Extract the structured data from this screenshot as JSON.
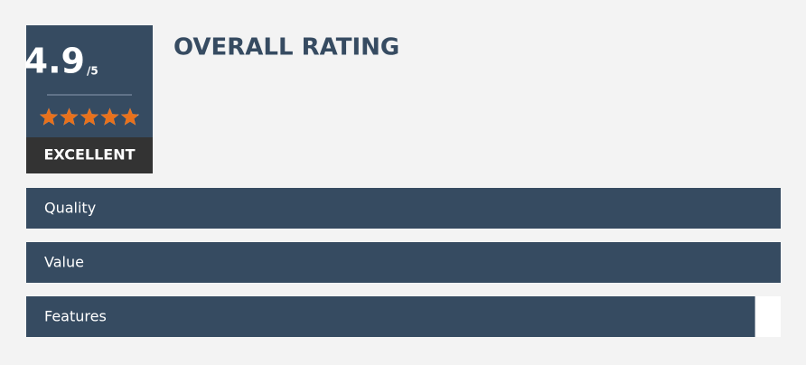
{
  "rating": {
    "score": 4.9,
    "max": 5,
    "max_label": "/5",
    "verdict": "EXCELLENT",
    "title": "OVERALL RATING",
    "criteria": [
      {
        "name": "Quality",
        "value": 5
      },
      {
        "name": "Value",
        "value": 5
      },
      {
        "name": "Features",
        "value": 4.83
      }
    ]
  }
}
